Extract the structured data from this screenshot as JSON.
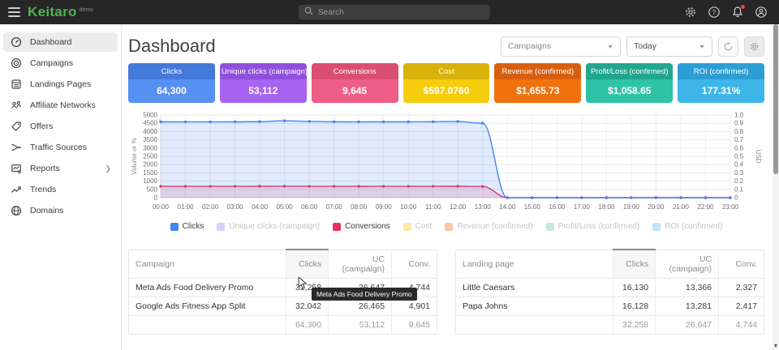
{
  "topbar": {
    "logo": "Keitaro",
    "logo_badge": "demo",
    "search_placeholder": "Search"
  },
  "sidebar": {
    "items": [
      {
        "label": "Dashboard"
      },
      {
        "label": "Campaigns"
      },
      {
        "label": "Landings Pages"
      },
      {
        "label": "Affiliate Networks"
      },
      {
        "label": "Offers"
      },
      {
        "label": "Traffic Sources"
      },
      {
        "label": "Reports"
      },
      {
        "label": "Trends"
      },
      {
        "label": "Domains"
      }
    ]
  },
  "header": {
    "title": "Dashboard",
    "campaign_select": "Campaigns",
    "date_select": "Today"
  },
  "cards": [
    {
      "label": "Clicks",
      "value": "64,300",
      "header_color": "#4478d9",
      "body_color": "#5590f2"
    },
    {
      "label": "Unique clicks (campaign)",
      "value": "53,112",
      "header_color": "#9050dd",
      "body_color": "#a763f2"
    },
    {
      "label": "Conversions",
      "value": "9,645",
      "header_color": "#d94e72",
      "body_color": "#ef5e86"
    },
    {
      "label": "Cost",
      "value": "$597.0760",
      "header_color": "#d9b20c",
      "body_color": "#f6cd0d"
    },
    {
      "label": "Revenue (confirmed)",
      "value": "$1,655.73",
      "header_color": "#d85f10",
      "body_color": "#f1710e"
    },
    {
      "label": "Profit/Loss (confirmed)",
      "value": "$1,058.65",
      "header_color": "#21a78e",
      "body_color": "#2dc3a6"
    },
    {
      "label": "ROI (confirmed)",
      "value": "177.31%",
      "header_color": "#2c9ed5",
      "body_color": "#3db5e9"
    }
  ],
  "chart_data": {
    "type": "area",
    "x": [
      "00:00",
      "01:00",
      "02:00",
      "03:00",
      "04:00",
      "05:00",
      "06:00",
      "07:00",
      "08:00",
      "09:00",
      "10:00",
      "11:00",
      "12:00",
      "13:00",
      "14:00",
      "15:00",
      "16:00",
      "17:00",
      "18:00",
      "19:00",
      "20:00",
      "21:00",
      "22:00",
      "23:00"
    ],
    "series": [
      {
        "name": "Clicks",
        "color": "#4285f4",
        "fill": "rgba(66,133,244,0.16)",
        "values": [
          4590,
          4588,
          4586,
          4590,
          4602,
          4655,
          4615,
          4592,
          4588,
          4590,
          4589,
          4600,
          4610,
          4505,
          0,
          0,
          0,
          0,
          0,
          0,
          0,
          0,
          0,
          0
        ]
      },
      {
        "name": "Conversions",
        "color": "#ed3060",
        "fill": "rgba(237,48,96,0.16)",
        "values": [
          688,
          689,
          687,
          690,
          692,
          696,
          691,
          688,
          686,
          689,
          690,
          691,
          693,
          675,
          0,
          0,
          0,
          0,
          0,
          0,
          0,
          0,
          0,
          0
        ]
      }
    ],
    "left_axis": {
      "label": "Volume or %",
      "min": 0,
      "max": 5000,
      "step": 500
    },
    "right_axis": {
      "label": "USD",
      "min": 0,
      "max": 1,
      "step": 0.1
    },
    "grid": true,
    "legend_position": "bottom",
    "legend": [
      {
        "label": "Clicks",
        "color": "#4285f4",
        "text_color": "#3b3b3b",
        "active": true
      },
      {
        "label": "Unique clicks (campaign)",
        "color": "#d9ccf7",
        "text_color": "#c4c4c4",
        "active": false
      },
      {
        "label": "Conversions",
        "color": "#ed3060",
        "text_color": "#3b3b3b",
        "active": true
      },
      {
        "label": "Cost",
        "color": "#fce9a9",
        "text_color": "#c4c4c4",
        "active": false
      },
      {
        "label": "Revenue (confirmed)",
        "color": "#f8c7a4",
        "text_color": "#c4c4c4",
        "active": false
      },
      {
        "label": "Profit/Loss (confirmed)",
        "color": "#c3e9e1",
        "text_color": "#c4c4c4",
        "active": false
      },
      {
        "label": "ROI (confirmed)",
        "color": "#c0e4f6",
        "text_color": "#c4c4c4",
        "active": false
      }
    ]
  },
  "tables": {
    "campaigns": {
      "headers": [
        "Campaign",
        "Clicks",
        "UC (campaign)",
        "Conv."
      ],
      "rows": [
        [
          "Meta Ads Food Delivery Promo",
          "32,258",
          "26,647",
          "4,744"
        ],
        [
          "Google Ads Fitness App Split",
          "32,042",
          "26,465",
          "4,901"
        ]
      ],
      "footer": [
        "",
        "64,300",
        "53,112",
        "9,645"
      ]
    },
    "landings": {
      "headers": [
        "Landing page",
        "Clicks",
        "UC (campaign)",
        "Conv."
      ],
      "rows": [
        [
          "Little Caesars",
          "16,130",
          "13,366",
          "2,327"
        ],
        [
          "Papa Johns",
          "16,128",
          "13,281",
          "2,417"
        ]
      ],
      "footer": [
        "",
        "32,258",
        "26,647",
        "4,744"
      ]
    }
  },
  "tooltip": {
    "text": "Meta Ads Food Delivery Promo"
  }
}
